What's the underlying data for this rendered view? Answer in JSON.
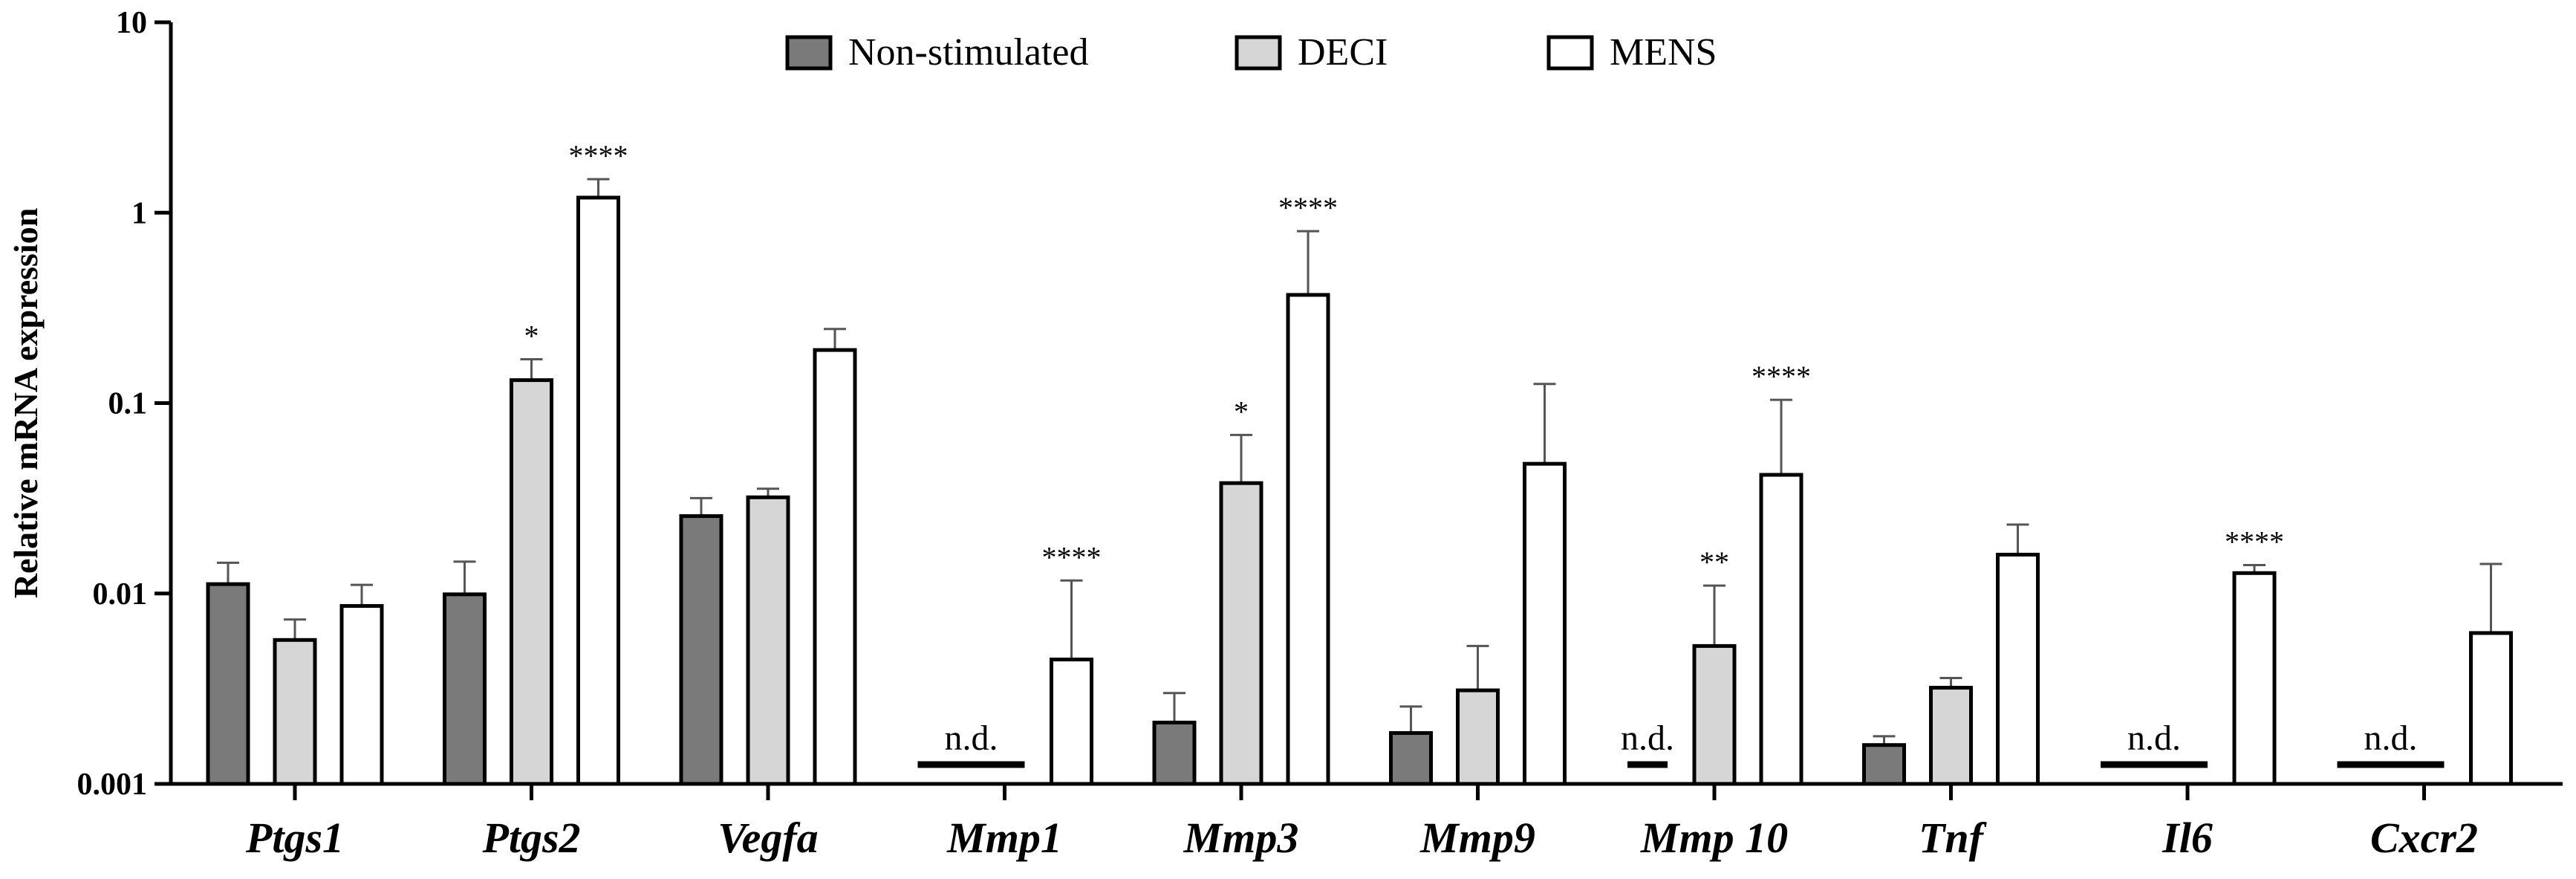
{
  "chart_data": {
    "type": "bar",
    "yscale": "log",
    "ylabel": "Relative mRNA expression",
    "xlabel": "",
    "ylim": [
      0.001,
      10
    ],
    "yticks": [
      {
        "value": 0.001,
        "label": "0.001"
      },
      {
        "value": 0.01,
        "label": "0.01"
      },
      {
        "value": 0.1,
        "label": "0.1"
      },
      {
        "value": 1,
        "label": "1"
      },
      {
        "value": 10,
        "label": "10"
      }
    ],
    "categories": [
      "Ptgs1",
      "Ptgs2",
      "Vegfa",
      "Mmp1",
      "Mmp3",
      "Mmp9",
      "Mmp 10",
      "Tnf",
      "Il6",
      "Cxcr2"
    ],
    "series": [
      {
        "name": "Non-stimulated",
        "color": "#7a7a7a",
        "values": [
          0.0112,
          0.0099,
          0.0255,
          null,
          0.0021,
          0.00185,
          null,
          0.0016,
          null,
          null
        ],
        "errors": [
          0.0033,
          0.0048,
          0.0062,
          null,
          0.0009,
          0.0007,
          null,
          0.00018,
          null,
          null
        ],
        "annotations": [
          "",
          "",
          "",
          "n.d.",
          "",
          "",
          "n.d.",
          "",
          "n.d.",
          "n.d."
        ]
      },
      {
        "name": "DECI",
        "color": "#d6d6d6",
        "values": [
          0.0057,
          0.132,
          0.032,
          null,
          0.038,
          0.0031,
          0.0053,
          0.0032,
          null,
          null
        ],
        "errors": [
          0.0016,
          0.038,
          0.0035,
          null,
          0.03,
          0.0022,
          0.0057,
          0.0004,
          null,
          null
        ],
        "annotations": [
          "",
          "*",
          "",
          "",
          "*",
          "",
          "**",
          "",
          "",
          ""
        ]
      },
      {
        "name": "MENS",
        "color": "#ffffff",
        "values": [
          0.0086,
          1.2,
          0.19,
          0.0045,
          0.37,
          0.048,
          0.042,
          0.016,
          0.0128,
          0.0062
        ],
        "errors": [
          0.0025,
          0.3,
          0.055,
          0.0072,
          0.43,
          0.078,
          0.062,
          0.007,
          0.0013,
          0.0081
        ],
        "annotations": [
          "",
          "****",
          "",
          "****",
          "****",
          "",
          "****",
          "",
          "****",
          ""
        ]
      }
    ],
    "legend": {
      "position": "top-center"
    }
  }
}
